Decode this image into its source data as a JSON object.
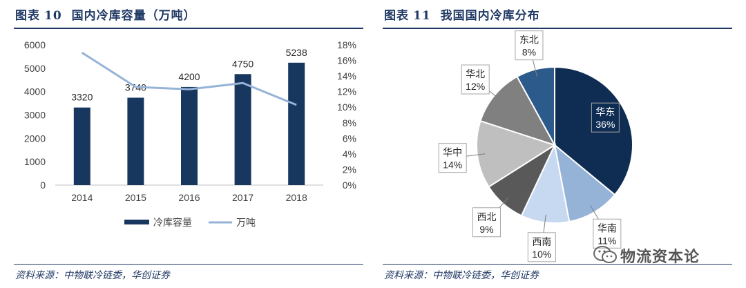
{
  "left_panel": {
    "label": "图表",
    "number": "10",
    "title": "国内冷库容量（万吨）",
    "source": "资料来源：中物联冷链委，华创证券"
  },
  "right_panel": {
    "label": "图表",
    "number": "11",
    "title": "我国国内冷库分布",
    "source": "资料来源：中物联冷链委，华创证券"
  },
  "watermark": {
    "text": "物流资本论",
    "icon": "wechat-icon"
  },
  "colors": {
    "bar": "#17375e",
    "line": "#95b3d7",
    "title": "#1f3864"
  },
  "chart_data": [
    {
      "type": "bar",
      "categories": [
        "2014",
        "2015",
        "2016",
        "2017",
        "2018"
      ],
      "series": [
        {
          "name": "冷库容量",
          "type": "bar",
          "axis": "left",
          "values": [
            3320,
            3740,
            4200,
            4750,
            5238
          ]
        },
        {
          "name": "万吨",
          "type": "line",
          "axis": "right",
          "values": [
            0.17,
            0.126,
            0.123,
            0.131,
            0.103
          ]
        }
      ],
      "data_labels": [
        "3320",
        "3740",
        "4200",
        "4750",
        "5238"
      ],
      "y_left": {
        "ticks": [
          "0",
          "1000",
          "2000",
          "3000",
          "4000",
          "5000",
          "6000"
        ],
        "range": [
          0,
          6000
        ]
      },
      "y_right": {
        "ticks": [
          "0%",
          "2%",
          "4%",
          "6%",
          "8%",
          "10%",
          "12%",
          "14%",
          "16%",
          "18%"
        ],
        "range": [
          0,
          0.18
        ]
      },
      "legend": {
        "placement": "bottom",
        "items": [
          "冷库容量",
          "万吨"
        ]
      },
      "grid": false
    },
    {
      "type": "pie",
      "slices": [
        {
          "name": "华东",
          "value": 36,
          "label": "36%",
          "color": "#0f2d52"
        },
        {
          "name": "华南",
          "value": 11,
          "label": "11%",
          "color": "#95b3d7"
        },
        {
          "name": "西南",
          "value": 10,
          "label": "10%",
          "color": "#c6d9f1"
        },
        {
          "name": "西北",
          "value": 9,
          "label": "9%",
          "color": "#595959"
        },
        {
          "name": "华中",
          "value": 14,
          "label": "14%",
          "color": "#bfbfbf"
        },
        {
          "name": "华北",
          "value": 12,
          "label": "12%",
          "color": "#808080"
        },
        {
          "name": "东北",
          "value": 8,
          "label": "8%",
          "color": "#2c5a8a"
        }
      ]
    }
  ]
}
